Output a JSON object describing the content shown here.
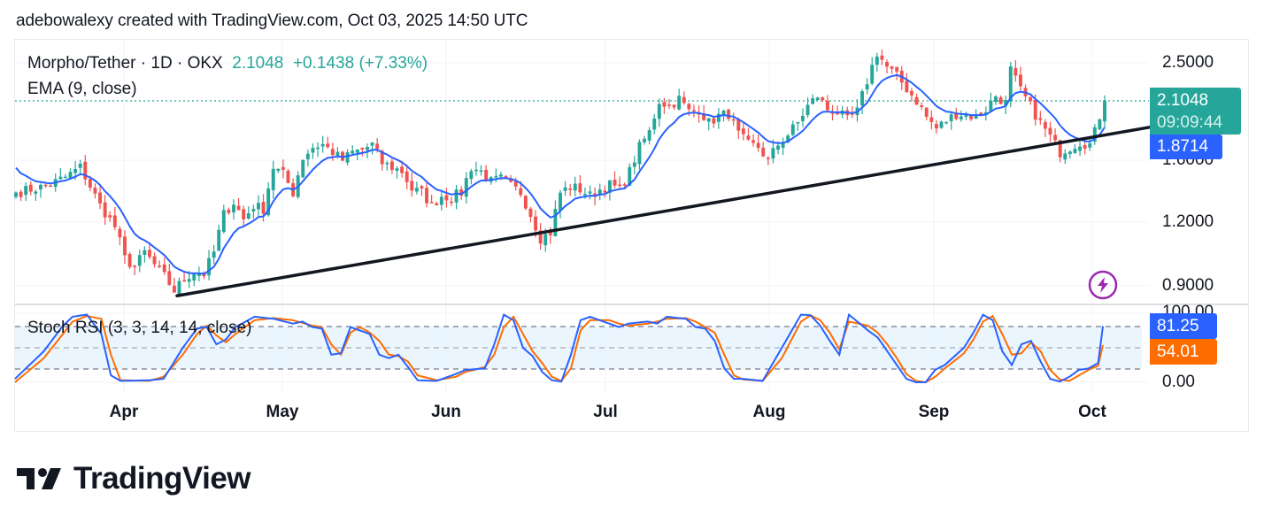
{
  "credit": "adebowalexy created with TradingView.com, Oct 03, 2025 14:50 UTC",
  "legend": {
    "symbol": "Morpho/Tether · 1D · OKX",
    "last": "2.1048",
    "change": "+0.1438 (+7.33%)",
    "ema": "EMA (9, close)",
    "stoch": "Stoch RSI (3, 3, 14, 14, close)"
  },
  "price_axis": {
    "ticks": [
      "2.5000",
      "1.6000",
      "1.2000",
      "0.9000"
    ],
    "last_price_tag": "2.1048",
    "countdown_tag": "09:09:44",
    "ema_tag": "1.8714"
  },
  "stoch_axis": {
    "ticks": [
      "100.00",
      "0.00"
    ],
    "k_tag": "81.25",
    "d_tag": "54.01"
  },
  "x_axis": {
    "labels": [
      "Apr",
      "May",
      "Jun",
      "Jul",
      "Aug",
      "Sep",
      "Oct"
    ]
  },
  "logo": {
    "text": "TradingView"
  },
  "colors": {
    "up": "#26a69a",
    "down": "#ef5350",
    "ema": "#2962ff",
    "stoch_k": "#2962ff",
    "stoch_d": "#ff6d00",
    "trendline": "#131722",
    "band": "#e3f2fd",
    "alert": "#9c27b0"
  },
  "chart_data": [
    {
      "type": "candlestick",
      "title": "Morpho/Tether · 1D · OKX",
      "scale": "log",
      "ylim": [
        0.82,
        2.72
      ],
      "y_ticks": [
        0.9,
        1.2,
        1.6,
        2.5
      ],
      "x_range": [
        "2025-03-14",
        "2025-10-03"
      ],
      "x_ticks": [
        "Apr",
        "May",
        "Jun",
        "Jul",
        "Aug",
        "Sep",
        "Oct"
      ],
      "close_anchors": [
        [
          0,
          1.38
        ],
        [
          6,
          1.42
        ],
        [
          10,
          1.48
        ],
        [
          13,
          1.55
        ],
        [
          15,
          1.42
        ],
        [
          17,
          1.3
        ],
        [
          20,
          1.18
        ],
        [
          22,
          1.02
        ],
        [
          24,
          0.98
        ],
        [
          26,
          1.05
        ],
        [
          28,
          0.99
        ],
        [
          30,
          0.94
        ],
        [
          32,
          0.88
        ],
        [
          34,
          0.93
        ],
        [
          36,
          0.96
        ],
        [
          38,
          0.95
        ],
        [
          40,
          1.05
        ],
        [
          42,
          1.25
        ],
        [
          44,
          1.32
        ],
        [
          46,
          1.22
        ],
        [
          48,
          1.3
        ],
        [
          50,
          1.28
        ],
        [
          52,
          1.55
        ],
        [
          54,
          1.5
        ],
        [
          56,
          1.38
        ],
        [
          58,
          1.62
        ],
        [
          60,
          1.7
        ],
        [
          62,
          1.72
        ],
        [
          64,
          1.66
        ],
        [
          66,
          1.6
        ],
        [
          68,
          1.66
        ],
        [
          70,
          1.68
        ],
        [
          72,
          1.72
        ],
        [
          74,
          1.58
        ],
        [
          76,
          1.55
        ],
        [
          78,
          1.52
        ],
        [
          80,
          1.4
        ],
        [
          82,
          1.38
        ],
        [
          84,
          1.3
        ],
        [
          86,
          1.36
        ],
        [
          88,
          1.35
        ],
        [
          90,
          1.38
        ],
        [
          92,
          1.55
        ],
        [
          94,
          1.52
        ],
        [
          96,
          1.45
        ],
        [
          98,
          1.47
        ],
        [
          100,
          1.42
        ],
        [
          102,
          1.38
        ],
        [
          104,
          1.25
        ],
        [
          106,
          1.12
        ],
        [
          108,
          1.15
        ],
        [
          110,
          1.38
        ],
        [
          112,
          1.42
        ],
        [
          114,
          1.4
        ],
        [
          116,
          1.36
        ],
        [
          118,
          1.4
        ],
        [
          120,
          1.43
        ],
        [
          122,
          1.4
        ],
        [
          124,
          1.52
        ],
        [
          126,
          1.7
        ],
        [
          128,
          1.82
        ],
        [
          130,
          2.1
        ],
        [
          132,
          2.05
        ],
        [
          134,
          2.12
        ],
        [
          136,
          2.0
        ],
        [
          138,
          2.02
        ],
        [
          140,
          1.9
        ],
        [
          142,
          1.96
        ],
        [
          144,
          1.98
        ],
        [
          146,
          1.8
        ],
        [
          148,
          1.72
        ],
        [
          150,
          1.7
        ],
        [
          152,
          1.6
        ],
        [
          154,
          1.72
        ],
        [
          156,
          1.8
        ],
        [
          158,
          1.9
        ],
        [
          160,
          2.05
        ],
        [
          162,
          2.15
        ],
        [
          164,
          2.02
        ],
        [
          166,
          2.0
        ],
        [
          168,
          1.92
        ],
        [
          170,
          2.0
        ],
        [
          172,
          2.3
        ],
        [
          174,
          2.62
        ],
        [
          176,
          2.45
        ],
        [
          178,
          2.35
        ],
        [
          180,
          2.22
        ],
        [
          182,
          2.1
        ],
        [
          184,
          1.95
        ],
        [
          186,
          1.85
        ],
        [
          188,
          1.92
        ],
        [
          190,
          1.98
        ],
        [
          192,
          1.97
        ],
        [
          194,
          1.95
        ],
        [
          196,
          2.02
        ],
        [
          198,
          2.15
        ],
        [
          200,
          2.08
        ],
        [
          201,
          2.42
        ],
        [
          203,
          2.2
        ],
        [
          205,
          2.05
        ],
        [
          207,
          1.9
        ],
        [
          209,
          1.78
        ],
        [
          211,
          1.66
        ],
        [
          213,
          1.7
        ],
        [
          215,
          1.74
        ],
        [
          217,
          1.72
        ],
        [
          218,
          1.82
        ],
        [
          219,
          1.96
        ],
        [
          220,
          2.1048
        ]
      ],
      "ema_period": 9,
      "ema_last": 1.8714,
      "last_close": 2.1048,
      "last_change": 0.1438,
      "last_change_pct": 7.33,
      "trendline": {
        "from": [
          "2025-04-20",
          0.86
        ],
        "to": [
          "2025-10-05",
          1.86
        ]
      }
    },
    {
      "type": "line",
      "title": "Stoch RSI (3, 3, 14, 14, close)",
      "ylim": [
        0,
        100
      ],
      "bands": [
        20,
        50,
        80
      ],
      "series": [
        {
          "name": "K",
          "anchors": [
            [
              0,
              5
            ],
            [
              6,
              45
            ],
            [
              10,
              82
            ],
            [
              12,
              95
            ],
            [
              15,
              98
            ],
            [
              18,
              70
            ],
            [
              20,
              10
            ],
            [
              22,
              2
            ],
            [
              28,
              3
            ],
            [
              31,
              5
            ],
            [
              35,
              50
            ],
            [
              38,
              78
            ],
            [
              40,
              80
            ],
            [
              42,
              55
            ],
            [
              44,
              62
            ],
            [
              46,
              80
            ],
            [
              50,
              95
            ],
            [
              54,
              92
            ],
            [
              58,
              85
            ],
            [
              60,
              88
            ],
            [
              62,
              80
            ],
            [
              64,
              78
            ],
            [
              66,
              40
            ],
            [
              68,
              42
            ],
            [
              70,
              80
            ],
            [
              72,
              75
            ],
            [
              74,
              70
            ],
            [
              76,
              40
            ],
            [
              78,
              35
            ],
            [
              80,
              40
            ],
            [
              82,
              22
            ],
            [
              84,
              3
            ],
            [
              88,
              2
            ],
            [
              92,
              12
            ],
            [
              94,
              18
            ],
            [
              98,
              20
            ],
            [
              100,
              55
            ],
            [
              102,
              98
            ],
            [
              104,
              90
            ],
            [
              106,
              50
            ],
            [
              108,
              38
            ],
            [
              110,
              15
            ],
            [
              112,
              3
            ],
            [
              114,
              1
            ],
            [
              116,
              40
            ],
            [
              118,
              90
            ],
            [
              120,
              95
            ],
            [
              124,
              85
            ],
            [
              126,
              80
            ],
            [
              128,
              85
            ],
            [
              132,
              88
            ],
            [
              134,
              85
            ],
            [
              136,
              95
            ],
            [
              140,
              92
            ],
            [
              142,
              80
            ],
            [
              144,
              78
            ],
            [
              146,
              60
            ],
            [
              148,
              20
            ],
            [
              150,
              5
            ],
            [
              152,
              5
            ],
            [
              156,
              2
            ],
            [
              160,
              50
            ],
            [
              164,
              98
            ],
            [
              166,
              97
            ],
            [
              168,
              82
            ],
            [
              170,
              60
            ],
            [
              172,
              40
            ],
            [
              174,
              98
            ],
            [
              178,
              75
            ],
            [
              180,
              65
            ],
            [
              182,
              45
            ],
            [
              184,
              25
            ],
            [
              186,
              5
            ],
            [
              188,
              0
            ],
            [
              190,
              0
            ],
            [
              192,
              18
            ],
            [
              194,
              25
            ],
            [
              198,
              50
            ],
            [
              200,
              72
            ],
            [
              202,
              98
            ],
            [
              204,
              90
            ],
            [
              206,
              45
            ],
            [
              208,
              25
            ],
            [
              210,
              55
            ],
            [
              212,
              60
            ],
            [
              214,
              30
            ],
            [
              216,
              5
            ],
            [
              218,
              1
            ],
            [
              220,
              8
            ],
            [
              222,
              18
            ],
            [
              224,
              20
            ],
            [
              226,
              28
            ],
            [
              227,
              81.25
            ]
          ]
        },
        {
          "name": "D",
          "anchors": [
            [
              0,
              0
            ],
            [
              6,
              35
            ],
            [
              10,
              70
            ],
            [
              12,
              88
            ],
            [
              15,
              96
            ],
            [
              18,
              92
            ],
            [
              20,
              40
            ],
            [
              22,
              3
            ],
            [
              28,
              2
            ],
            [
              31,
              8
            ],
            [
              35,
              40
            ],
            [
              38,
              70
            ],
            [
              40,
              82
            ],
            [
              42,
              68
            ],
            [
              44,
              58
            ],
            [
              46,
              70
            ],
            [
              50,
              90
            ],
            [
              54,
              93
            ],
            [
              58,
              90
            ],
            [
              60,
              86
            ],
            [
              62,
              82
            ],
            [
              64,
              80
            ],
            [
              66,
              55
            ],
            [
              68,
              40
            ],
            [
              70,
              72
            ],
            [
              72,
              80
            ],
            [
              74,
              72
            ],
            [
              76,
              60
            ],
            [
              78,
              40
            ],
            [
              80,
              38
            ],
            [
              82,
              30
            ],
            [
              84,
              10
            ],
            [
              88,
              3
            ],
            [
              92,
              8
            ],
            [
              94,
              15
            ],
            [
              98,
              22
            ],
            [
              100,
              40
            ],
            [
              102,
              80
            ],
            [
              104,
              95
            ],
            [
              106,
              70
            ],
            [
              108,
              45
            ],
            [
              110,
              28
            ],
            [
              112,
              8
            ],
            [
              114,
              2
            ],
            [
              116,
              20
            ],
            [
              118,
              75
            ],
            [
              120,
              90
            ],
            [
              124,
              90
            ],
            [
              126,
              85
            ],
            [
              128,
              82
            ],
            [
              132,
              85
            ],
            [
              134,
              88
            ],
            [
              136,
              92
            ],
            [
              140,
              93
            ],
            [
              142,
              88
            ],
            [
              144,
              80
            ],
            [
              146,
              72
            ],
            [
              148,
              40
            ],
            [
              150,
              10
            ],
            [
              152,
              4
            ],
            [
              156,
              2
            ],
            [
              160,
              35
            ],
            [
              164,
              88
            ],
            [
              166,
              97
            ],
            [
              168,
              90
            ],
            [
              170,
              72
            ],
            [
              172,
              48
            ],
            [
              174,
              88
            ],
            [
              178,
              82
            ],
            [
              180,
              72
            ],
            [
              182,
              55
            ],
            [
              184,
              35
            ],
            [
              186,
              12
            ],
            [
              188,
              2
            ],
            [
              190,
              0
            ],
            [
              192,
              8
            ],
            [
              194,
              20
            ],
            [
              198,
              42
            ],
            [
              200,
              62
            ],
            [
              202,
              88
            ],
            [
              204,
              96
            ],
            [
              206,
              70
            ],
            [
              208,
              40
            ],
            [
              210,
              42
            ],
            [
              212,
              58
            ],
            [
              214,
              45
            ],
            [
              216,
              18
            ],
            [
              218,
              4
            ],
            [
              220,
              2
            ],
            [
              222,
              10
            ],
            [
              224,
              18
            ],
            [
              226,
              24
            ],
            [
              227,
              54.01
            ]
          ]
        }
      ],
      "k_last": 81.25,
      "d_last": 54.01
    }
  ]
}
